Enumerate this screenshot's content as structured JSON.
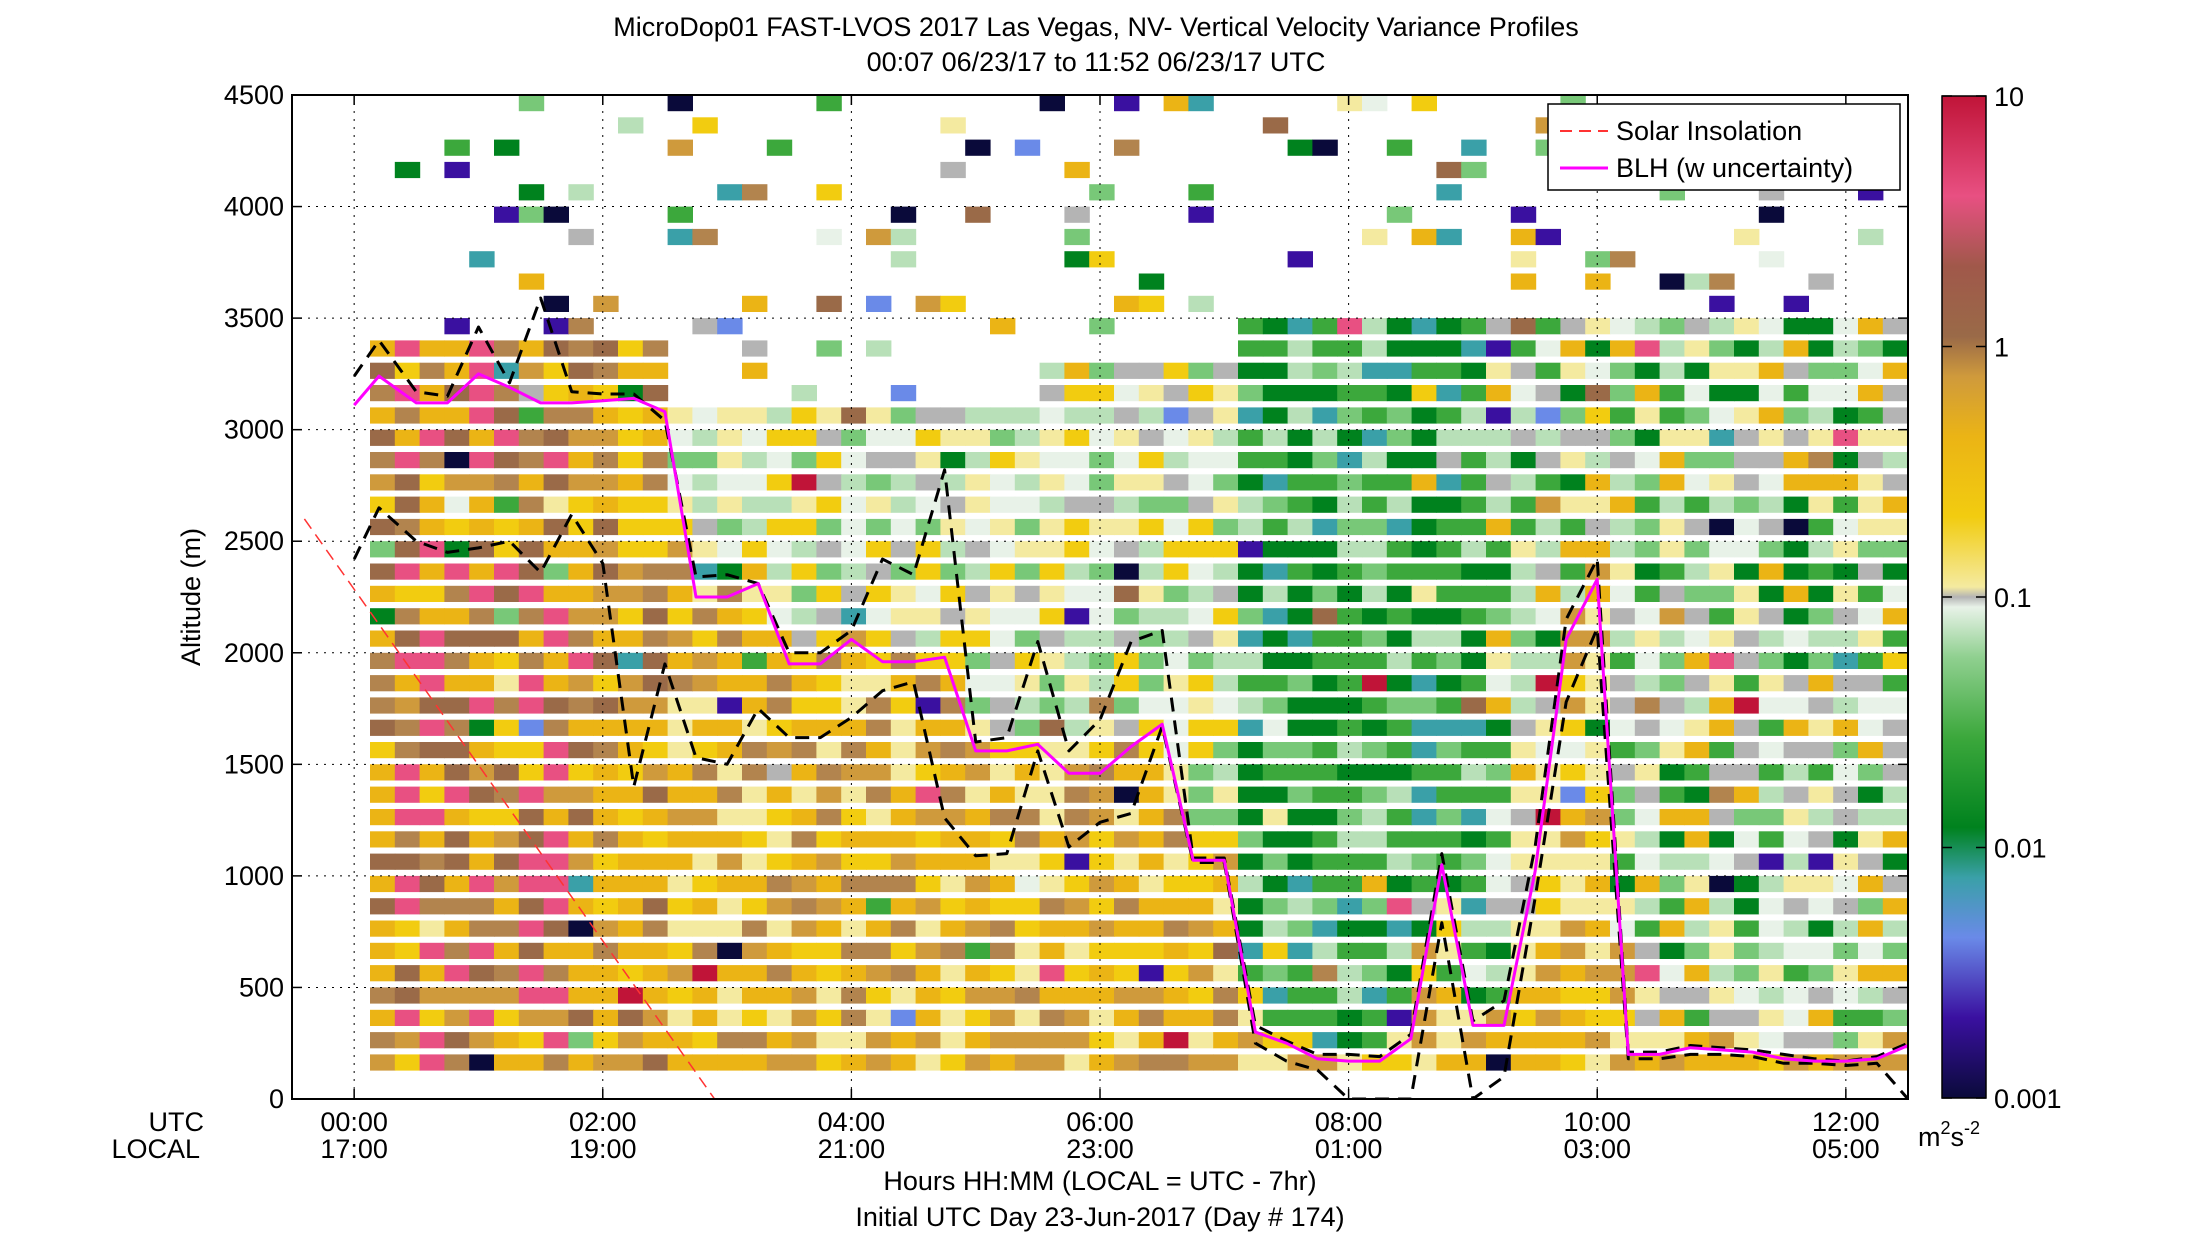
{
  "chart_data": {
    "type": "heatmap",
    "title_line1": "MicroDop01 FAST-LVOS 2017 Las Vegas, NV- Vertical Velocity Variance Profiles",
    "title_line2": "00:07 06/23/17 to 11:52 06/23/17  UTC",
    "ylabel": "Altitude (m)",
    "xlabel_line1": "Hours HH:MM  (LOCAL = UTC - 7hr)",
    "xlabel_line2": "Initial UTC Day 23-Jun-2017 (Day # 174)",
    "x_row_label_utc": "UTC",
    "x_row_label_local": "LOCAL",
    "xlim_hours": [
      -0.5,
      12.5
    ],
    "ylim": [
      0,
      4500
    ],
    "grid": "dotted",
    "x_ticks": [
      {
        "hour": 0,
        "utc": "00:00",
        "local": "17:00"
      },
      {
        "hour": 2,
        "utc": "02:00",
        "local": "19:00"
      },
      {
        "hour": 4,
        "utc": "04:00",
        "local": "21:00"
      },
      {
        "hour": 6,
        "utc": "06:00",
        "local": "23:00"
      },
      {
        "hour": 8,
        "utc": "08:00",
        "local": "01:00"
      },
      {
        "hour": 10,
        "utc": "10:00",
        "local": "03:00"
      },
      {
        "hour": 12,
        "utc": "12:00",
        "local": "05:00"
      }
    ],
    "y_ticks": [
      {
        "value": 0,
        "label": "0"
      },
      {
        "value": 500,
        "label": "500"
      },
      {
        "value": 1000,
        "label": "1000"
      },
      {
        "value": 1500,
        "label": "1500"
      },
      {
        "value": 2000,
        "label": "2000"
      },
      {
        "value": 2500,
        "label": "2500"
      },
      {
        "value": 3000,
        "label": "3000"
      },
      {
        "value": 3500,
        "label": "3500"
      },
      {
        "value": 4000,
        "label": "4000"
      },
      {
        "value": 4500,
        "label": "4500"
      }
    ],
    "colorbar": {
      "scale": "log",
      "range": [
        0.001,
        10
      ],
      "ticks": [
        {
          "value": 10,
          "label": "10"
        },
        {
          "value": 1,
          "label": "1"
        },
        {
          "value": 0.1,
          "label": "0.1"
        },
        {
          "value": 0.01,
          "label": "0.01"
        },
        {
          "value": 0.001,
          "label": "0.001"
        }
      ],
      "unit_main": "m",
      "unit_sup1": "2",
      "unit_s": "s",
      "unit_sup2": "-2"
    },
    "legend": {
      "placement": "top-right",
      "items": [
        {
          "label": "Solar Insolation",
          "color": "#ff3333",
          "style": "dashed"
        },
        {
          "label": "BLH (w uncertainty)",
          "color": "#ff00ff",
          "style": "solid"
        }
      ]
    },
    "series": [
      {
        "label": "BLH (w uncertainty)",
        "color": "#ff00ff",
        "x": [
          0,
          0.2,
          0.5,
          0.75,
          1.0,
          1.25,
          1.5,
          1.75,
          2.0,
          2.25,
          2.5,
          2.75,
          3.0,
          3.25,
          3.5,
          3.75,
          4.0,
          4.25,
          4.5,
          4.75,
          5.0,
          5.25,
          5.5,
          5.75,
          6.0,
          6.25,
          6.5,
          6.75,
          7.0,
          7.25,
          7.5,
          7.75,
          8.0,
          8.25,
          8.5,
          8.75,
          9.0,
          9.25,
          9.5,
          9.75,
          10.0,
          10.25,
          10.5,
          10.75,
          11.0,
          11.25,
          11.5,
          11.75,
          12.0,
          12.25,
          12.5
        ],
        "y": [
          3110,
          3240,
          3120,
          3120,
          3250,
          3190,
          3120,
          3120,
          3130,
          3140,
          3080,
          2250,
          2250,
          2310,
          1950,
          1950,
          2060,
          1960,
          1960,
          1980,
          1560,
          1560,
          1590,
          1460,
          1460,
          1580,
          1680,
          1070,
          1070,
          300,
          250,
          180,
          170,
          170,
          270,
          1050,
          330,
          330,
          1020,
          2060,
          2330,
          200,
          200,
          230,
          220,
          210,
          180,
          170,
          170,
          180,
          240
        ]
      },
      {
        "label": "BLH upper uncertainty",
        "color": "#000000",
        "x": [
          0,
          0.2,
          0.5,
          0.75,
          1.0,
          1.25,
          1.5,
          1.75,
          2.0,
          2.25,
          2.5,
          2.75,
          3.0,
          3.25,
          3.5,
          3.75,
          4.0,
          4.25,
          4.5,
          4.75,
          5.0,
          5.25,
          5.5,
          5.75,
          6.0,
          6.25,
          6.5,
          6.75,
          7.0,
          7.25,
          7.5,
          7.75,
          8.0,
          8.25,
          8.5,
          8.75,
          9.0,
          9.25,
          9.5,
          9.75,
          10.0,
          10.25,
          10.5,
          10.75,
          11.0,
          11.25,
          11.5,
          11.75,
          12.0,
          12.25,
          12.5
        ],
        "y": [
          3240,
          3400,
          3170,
          3150,
          3460,
          3210,
          3590,
          3170,
          3160,
          3160,
          3040,
          2340,
          2350,
          2310,
          2000,
          2000,
          2100,
          2420,
          2350,
          2820,
          1600,
          1620,
          2050,
          1560,
          1700,
          2050,
          2100,
          1080,
          1080,
          330,
          260,
          200,
          200,
          190,
          290,
          1100,
          350,
          440,
          1130,
          2150,
          2420,
          210,
          210,
          240,
          230,
          220,
          200,
          180,
          170,
          190,
          250
        ]
      },
      {
        "label": "BLH lower uncertainty",
        "color": "#000000",
        "x": [
          0,
          0.2,
          0.5,
          0.75,
          1.0,
          1.25,
          1.5,
          1.75,
          2.0,
          2.25,
          2.5,
          2.75,
          3.0,
          3.25,
          3.5,
          3.75,
          4.0,
          4.25,
          4.5,
          4.75,
          5.0,
          5.25,
          5.5,
          5.75,
          6.0,
          6.25,
          6.5,
          6.75,
          7.0,
          7.25,
          7.5,
          7.75,
          8.0,
          8.25,
          8.5,
          8.75,
          9.0,
          9.25,
          9.5,
          9.75,
          10.0,
          10.25,
          10.5,
          10.75,
          11.0,
          11.25,
          11.5,
          11.75,
          12.0,
          12.25,
          12.5
        ],
        "y": [
          2420,
          2650,
          2500,
          2450,
          2470,
          2500,
          2360,
          2620,
          2400,
          1400,
          1950,
          1530,
          1500,
          1750,
          1620,
          1620,
          1710,
          1830,
          1870,
          1260,
          1090,
          1100,
          1560,
          1130,
          1240,
          1280,
          1670,
          1060,
          1060,
          250,
          170,
          130,
          0,
          0,
          0,
          790,
          0,
          100,
          900,
          1780,
          2110,
          180,
          180,
          200,
          200,
          190,
          160,
          160,
          150,
          160,
          0
        ]
      },
      {
        "label": "Solar Insolation",
        "color": "#ff3333",
        "x": [
          -0.4,
          2.9
        ],
        "y": [
          2600,
          0
        ]
      }
    ],
    "heatmap_note_colors": [
      "#0a0a3a",
      "#3a10a0",
      "#6a8ae8",
      "#3aa0a8",
      "#00821e",
      "#3ca83c",
      "#78c878",
      "#b8e0b8",
      "#e8f2e8",
      "#b4b4b4",
      "#f4eaa0",
      "#f2cc10",
      "#ebb415",
      "#cf9a3c",
      "#b2844e",
      "#9a6a48",
      "#e85082",
      "#c01438"
    ]
  }
}
